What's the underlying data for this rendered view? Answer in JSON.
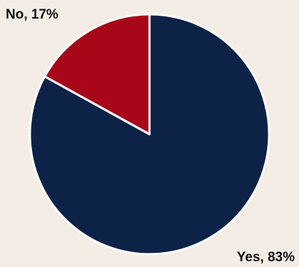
{
  "chart_data": {
    "type": "pie",
    "title": "",
    "slices": [
      {
        "name": "Yes",
        "value": 83,
        "label": "Yes, 83%",
        "color": "#0d2247"
      },
      {
        "name": "No",
        "value": 17,
        "label": "No, 17%",
        "color": "#a8071a"
      }
    ],
    "start_angle": "12 o'clock",
    "direction": "clockwise",
    "background": "#f3ede6",
    "slice_border_color": "#ffffff"
  }
}
